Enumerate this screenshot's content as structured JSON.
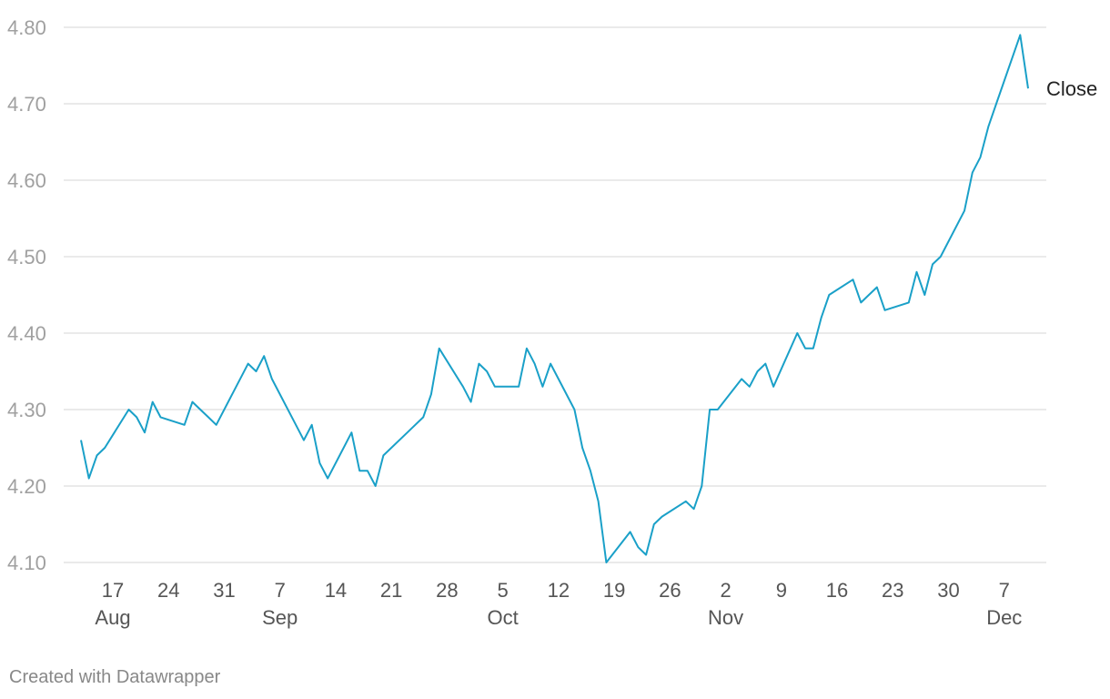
{
  "chart_data": {
    "type": "line",
    "title": "",
    "xlabel": "",
    "ylabel": "",
    "ylim": [
      4.1,
      4.8
    ],
    "y_ticks": [
      "4.10",
      "4.20",
      "4.30",
      "4.40",
      "4.50",
      "4.60",
      "4.70",
      "4.80"
    ],
    "x_range": [
      "2019-08-13",
      "2019-12-10"
    ],
    "x_day_ticks": [
      {
        "date": "2019-08-17",
        "label": "17"
      },
      {
        "date": "2019-08-24",
        "label": "24"
      },
      {
        "date": "2019-08-31",
        "label": "31"
      },
      {
        "date": "2019-09-07",
        "label": "7"
      },
      {
        "date": "2019-09-14",
        "label": "14"
      },
      {
        "date": "2019-09-21",
        "label": "21"
      },
      {
        "date": "2019-09-28",
        "label": "28"
      },
      {
        "date": "2019-10-05",
        "label": "5"
      },
      {
        "date": "2019-10-12",
        "label": "12"
      },
      {
        "date": "2019-10-19",
        "label": "19"
      },
      {
        "date": "2019-10-26",
        "label": "26"
      },
      {
        "date": "2019-11-02",
        "label": "2"
      },
      {
        "date": "2019-11-09",
        "label": "9"
      },
      {
        "date": "2019-11-16",
        "label": "16"
      },
      {
        "date": "2019-11-23",
        "label": "23"
      },
      {
        "date": "2019-11-30",
        "label": "30"
      },
      {
        "date": "2019-12-07",
        "label": "7"
      }
    ],
    "x_month_ticks": [
      {
        "date": "2019-08-17",
        "label": "Aug"
      },
      {
        "date": "2019-09-07",
        "label": "Sep"
      },
      {
        "date": "2019-10-05",
        "label": "Oct"
      },
      {
        "date": "2019-11-02",
        "label": "Nov"
      },
      {
        "date": "2019-12-07",
        "label": "Dec"
      }
    ],
    "grid": true,
    "line_color": "#1aa0c8",
    "series": [
      {
        "name": "Close",
        "x": [
          "2019-08-13",
          "2019-08-14",
          "2019-08-15",
          "2019-08-16",
          "2019-08-19",
          "2019-08-20",
          "2019-08-21",
          "2019-08-22",
          "2019-08-23",
          "2019-08-26",
          "2019-08-27",
          "2019-08-28",
          "2019-08-29",
          "2019-08-30",
          "2019-09-03",
          "2019-09-04",
          "2019-09-05",
          "2019-09-06",
          "2019-09-09",
          "2019-09-10",
          "2019-09-11",
          "2019-09-12",
          "2019-09-13",
          "2019-09-16",
          "2019-09-17",
          "2019-09-18",
          "2019-09-19",
          "2019-09-20",
          "2019-09-23",
          "2019-09-24",
          "2019-09-25",
          "2019-09-26",
          "2019-09-27",
          "2019-09-30",
          "2019-10-01",
          "2019-10-02",
          "2019-10-03",
          "2019-10-04",
          "2019-10-07",
          "2019-10-08",
          "2019-10-09",
          "2019-10-10",
          "2019-10-11",
          "2019-10-14",
          "2019-10-15",
          "2019-10-16",
          "2019-10-17",
          "2019-10-18",
          "2019-10-21",
          "2019-10-22",
          "2019-10-23",
          "2019-10-24",
          "2019-10-25",
          "2019-10-28",
          "2019-10-29",
          "2019-10-30",
          "2019-10-31",
          "2019-11-01",
          "2019-11-04",
          "2019-11-05",
          "2019-11-06",
          "2019-11-07",
          "2019-11-08",
          "2019-11-11",
          "2019-11-12",
          "2019-11-13",
          "2019-11-14",
          "2019-11-15",
          "2019-11-18",
          "2019-11-19",
          "2019-11-20",
          "2019-11-21",
          "2019-11-22",
          "2019-11-25",
          "2019-11-26",
          "2019-11-27",
          "2019-11-28",
          "2019-11-29",
          "2019-12-02",
          "2019-12-03",
          "2019-12-04",
          "2019-12-05",
          "2019-12-06",
          "2019-12-09",
          "2019-12-10"
        ],
        "values": [
          4.26,
          4.21,
          4.24,
          4.25,
          4.3,
          4.29,
          4.27,
          4.31,
          4.29,
          4.28,
          4.31,
          4.3,
          4.29,
          4.28,
          4.36,
          4.35,
          4.37,
          4.34,
          4.28,
          4.26,
          4.28,
          4.23,
          4.21,
          4.27,
          4.22,
          4.22,
          4.2,
          4.24,
          4.27,
          4.28,
          4.29,
          4.32,
          4.38,
          4.33,
          4.31,
          4.36,
          4.35,
          4.33,
          4.33,
          4.38,
          4.36,
          4.33,
          4.36,
          4.3,
          4.25,
          4.22,
          4.18,
          4.1,
          4.14,
          4.12,
          4.11,
          4.15,
          4.16,
          4.18,
          4.17,
          4.2,
          4.3,
          4.3,
          4.34,
          4.33,
          4.35,
          4.36,
          4.33,
          4.4,
          4.38,
          4.38,
          4.42,
          4.45,
          4.47,
          4.44,
          4.45,
          4.46,
          4.43,
          4.44,
          4.48,
          4.45,
          4.49,
          4.5,
          4.56,
          4.61,
          4.63,
          4.67,
          4.7,
          4.79,
          4.72
        ]
      }
    ],
    "series_label": "Close"
  },
  "footer": "Created with Datawrapper"
}
